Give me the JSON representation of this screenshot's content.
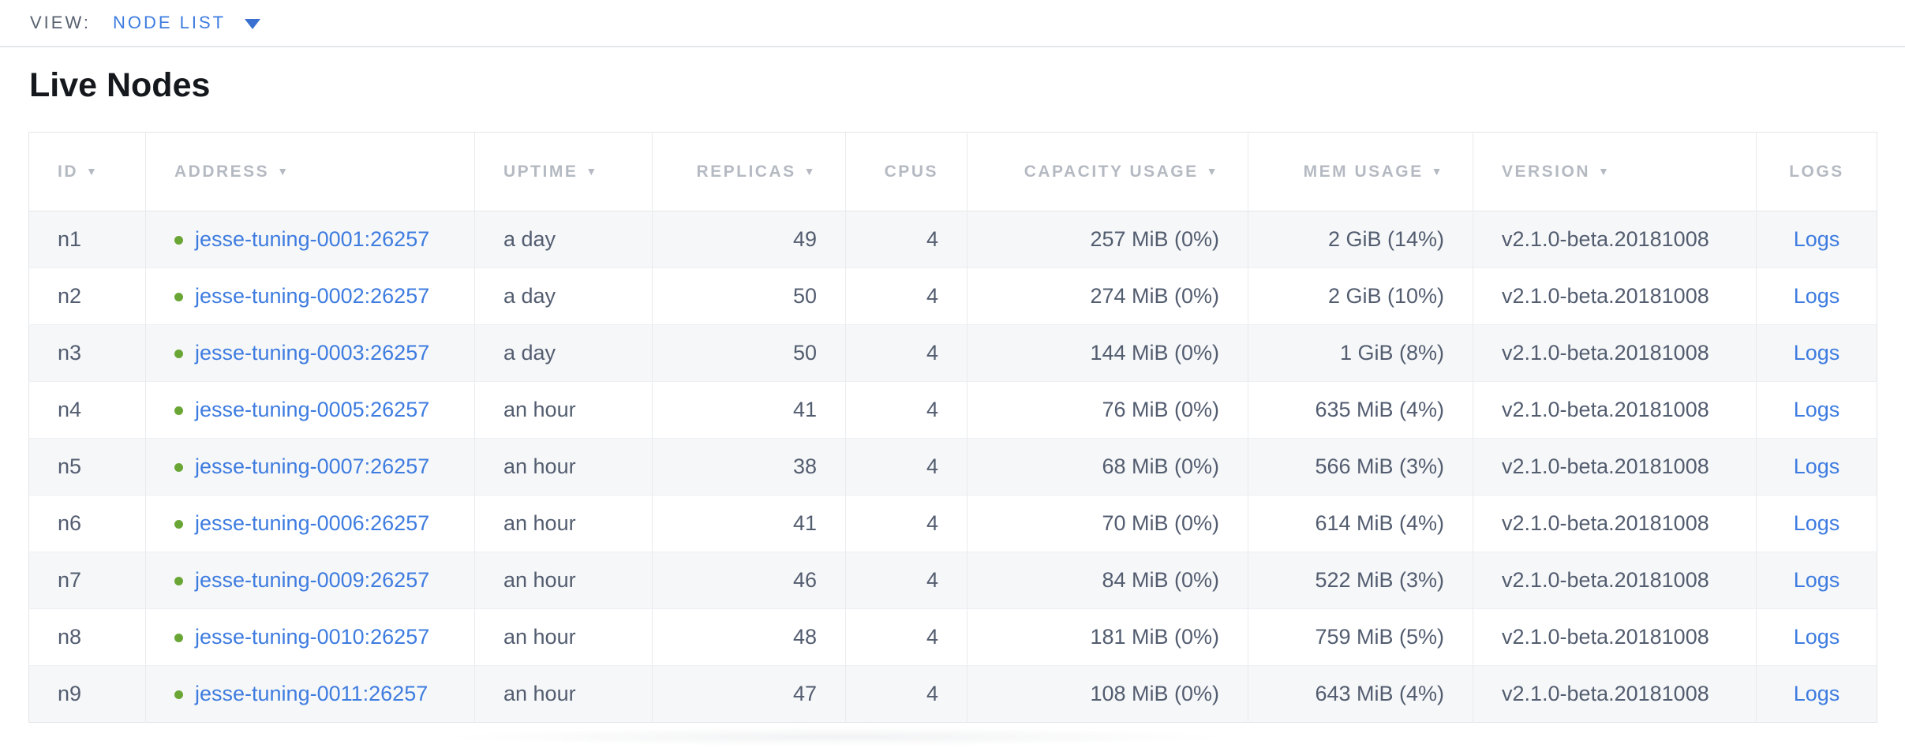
{
  "view_bar": {
    "label": "VIEW:",
    "selected": "NODE LIST"
  },
  "title": "Live Nodes",
  "table": {
    "columns": [
      {
        "key": "id",
        "label": "ID",
        "sortable": true
      },
      {
        "key": "address",
        "label": "ADDRESS",
        "sortable": true
      },
      {
        "key": "uptime",
        "label": "UPTIME",
        "sortable": true
      },
      {
        "key": "replicas",
        "label": "REPLICAS",
        "sortable": true
      },
      {
        "key": "cpus",
        "label": "CPUS",
        "sortable": false
      },
      {
        "key": "capacity_usage",
        "label": "CAPACITY USAGE",
        "sortable": true
      },
      {
        "key": "mem_usage",
        "label": "MEM USAGE",
        "sortable": true
      },
      {
        "key": "version",
        "label": "VERSION",
        "sortable": true
      },
      {
        "key": "logs",
        "label": "LOGS",
        "sortable": false
      }
    ],
    "rows": [
      {
        "id": "n1",
        "status_icon": "live-dot",
        "address": "jesse-tuning-0001:26257",
        "uptime": "a day",
        "replicas": "49",
        "cpus": "4",
        "capacity_usage": "257 MiB (0%)",
        "mem_usage": "2 GiB (14%)",
        "version": "v2.1.0-beta.20181008",
        "logs": "Logs"
      },
      {
        "id": "n2",
        "status_icon": "live-dot",
        "address": "jesse-tuning-0002:26257",
        "uptime": "a day",
        "replicas": "50",
        "cpus": "4",
        "capacity_usage": "274 MiB (0%)",
        "mem_usage": "2 GiB (10%)",
        "version": "v2.1.0-beta.20181008",
        "logs": "Logs"
      },
      {
        "id": "n3",
        "status_icon": "live-dot",
        "address": "jesse-tuning-0003:26257",
        "uptime": "a day",
        "replicas": "50",
        "cpus": "4",
        "capacity_usage": "144 MiB (0%)",
        "mem_usage": "1 GiB (8%)",
        "version": "v2.1.0-beta.20181008",
        "logs": "Logs"
      },
      {
        "id": "n4",
        "status_icon": "live-dot",
        "address": "jesse-tuning-0005:26257",
        "uptime": "an hour",
        "replicas": "41",
        "cpus": "4",
        "capacity_usage": "76 MiB (0%)",
        "mem_usage": "635 MiB (4%)",
        "version": "v2.1.0-beta.20181008",
        "logs": "Logs"
      },
      {
        "id": "n5",
        "status_icon": "live-dot",
        "address": "jesse-tuning-0007:26257",
        "uptime": "an hour",
        "replicas": "38",
        "cpus": "4",
        "capacity_usage": "68 MiB (0%)",
        "mem_usage": "566 MiB (3%)",
        "version": "v2.1.0-beta.20181008",
        "logs": "Logs"
      },
      {
        "id": "n6",
        "status_icon": "live-dot",
        "address": "jesse-tuning-0006:26257",
        "uptime": "an hour",
        "replicas": "41",
        "cpus": "4",
        "capacity_usage": "70 MiB (0%)",
        "mem_usage": "614 MiB (4%)",
        "version": "v2.1.0-beta.20181008",
        "logs": "Logs"
      },
      {
        "id": "n7",
        "status_icon": "live-dot",
        "address": "jesse-tuning-0009:26257",
        "uptime": "an hour",
        "replicas": "46",
        "cpus": "4",
        "capacity_usage": "84 MiB (0%)",
        "mem_usage": "522 MiB (3%)",
        "version": "v2.1.0-beta.20181008",
        "logs": "Logs"
      },
      {
        "id": "n8",
        "status_icon": "live-dot",
        "address": "jesse-tuning-0010:26257",
        "uptime": "an hour",
        "replicas": "48",
        "cpus": "4",
        "capacity_usage": "181 MiB (0%)",
        "mem_usage": "759 MiB (5%)",
        "version": "v2.1.0-beta.20181008",
        "logs": "Logs"
      },
      {
        "id": "n9",
        "status_icon": "live-dot",
        "address": "jesse-tuning-0011:26257",
        "uptime": "an hour",
        "replicas": "47",
        "cpus": "4",
        "capacity_usage": "108 MiB (0%)",
        "mem_usage": "643 MiB (4%)",
        "version": "v2.1.0-beta.20181008",
        "logs": "Logs"
      }
    ]
  },
  "colors": {
    "link_blue": "#3e7ce0",
    "live_status_green": "#6aa636",
    "header_text_gray": "#b5bac2",
    "cell_text_slate": "#535d70",
    "row_alt_gray": "#f6f7f8"
  }
}
